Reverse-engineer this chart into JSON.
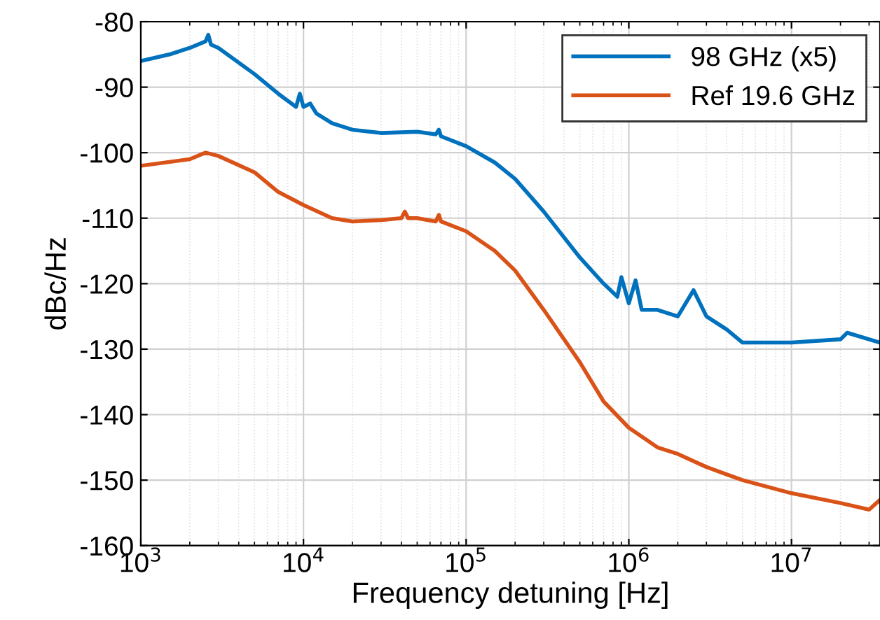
{
  "chart_data": {
    "type": "line",
    "xlabel": "Frequency detuning [Hz]",
    "ylabel": "dBc/Hz",
    "log": "x",
    "grid": true,
    "legend": "top right",
    "line_style": "solid",
    "marker": "none",
    "xlim": [
      1000,
      35000000
    ],
    "ylim": [
      -160,
      -80
    ],
    "xticks": [
      {
        "value": 1000,
        "label": "10$^{3}$"
      },
      {
        "value": 10000,
        "label": "10$^{4}$"
      },
      {
        "value": 100000,
        "label": "10$^{5}$"
      },
      {
        "value": 1000000,
        "label": "10$^{6}$"
      },
      {
        "value": 10000000,
        "label": "10$^{7}$"
      }
    ],
    "yticks": [
      -160,
      -150,
      -140,
      -130,
      -120,
      -110,
      -100,
      -90,
      -80
    ],
    "series": [
      {
        "name": "98 GHz (x5)",
        "color": "#0072bd",
        "x": [
          1000,
          1500,
          2000,
          2500,
          2600,
          2700,
          3000,
          5000,
          7000,
          9000,
          9500,
          10000,
          11000,
          12000,
          15000,
          20000,
          30000,
          50000,
          65000,
          68000,
          70000,
          100000,
          150000,
          200000,
          300000,
          500000,
          700000,
          850000,
          900000,
          1000000,
          1100000,
          1200000,
          1500000,
          2000000,
          2500000,
          3000000,
          4000000,
          5000000,
          10000000,
          20000000,
          22000000,
          35000000
        ],
        "values": [
          -86,
          -85,
          -84,
          -83,
          -82,
          -83.5,
          -84,
          -88,
          -91,
          -93,
          -91,
          -93,
          -92.5,
          -94,
          -95.5,
          -96.5,
          -97,
          -96.8,
          -97.2,
          -96.5,
          -97.5,
          -99,
          -101.5,
          -104,
          -109,
          -116,
          -120,
          -122,
          -119,
          -123,
          -119.5,
          -124,
          -124,
          -125,
          -121,
          -125,
          -127,
          -129,
          -129,
          -128.5,
          -127.5,
          -129
        ]
      },
      {
        "name": "Ref 19.6 GHz",
        "color": "#d95319",
        "x": [
          1000,
          2000,
          2500,
          3000,
          5000,
          7000,
          10000,
          15000,
          20000,
          30000,
          40000,
          42000,
          44000,
          50000,
          65000,
          68000,
          70000,
          100000,
          150000,
          200000,
          300000,
          500000,
          700000,
          1000000,
          1500000,
          2000000,
          3000000,
          5000000,
          10000000,
          20000000,
          30000000,
          35000000
        ],
        "values": [
          -102,
          -101,
          -100,
          -100.5,
          -103,
          -106,
          -108,
          -110,
          -110.5,
          -110.3,
          -110,
          -109,
          -110,
          -110,
          -110.5,
          -109.5,
          -110.5,
          -112,
          -115,
          -118,
          -124,
          -132,
          -138,
          -142,
          -145,
          -146,
          -148,
          -150,
          -152,
          -153.5,
          -154.5,
          -153
        ]
      }
    ]
  }
}
